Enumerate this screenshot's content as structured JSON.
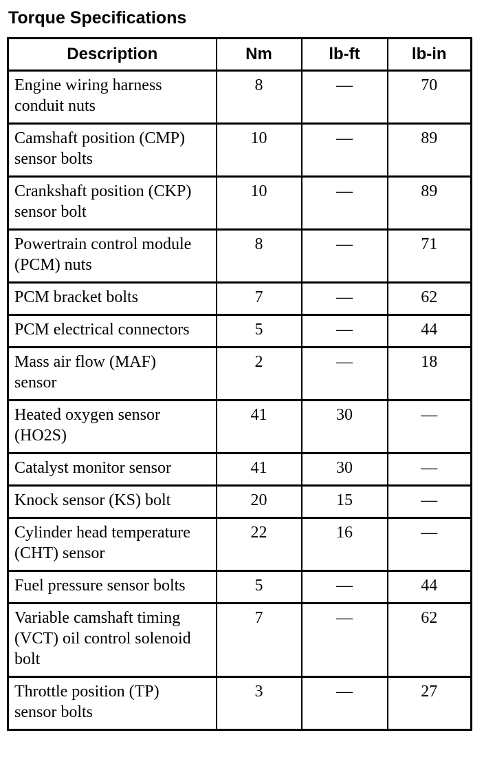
{
  "page": {
    "title": "Torque Specifications"
  },
  "table": {
    "headers": [
      "Description",
      "Nm",
      "lb-ft",
      "lb-in"
    ],
    "rows": [
      [
        "Engine wiring harness conduit nuts",
        "8",
        "—",
        "70"
      ],
      [
        "Camshaft position (CMP) sensor bolts",
        "10",
        "—",
        "89"
      ],
      [
        "Crankshaft position (CKP) sensor bolt",
        "10",
        "—",
        "89"
      ],
      [
        "Powertrain control module (PCM) nuts",
        "8",
        "—",
        "71"
      ],
      [
        "PCM bracket bolts",
        "7",
        "—",
        "62"
      ],
      [
        "PCM electrical connectors",
        "5",
        "—",
        "44"
      ],
      [
        "Mass air flow (MAF) sensor",
        "2",
        "—",
        "18"
      ],
      [
        "Heated oxygen sensor (HO2S)",
        "41",
        "30",
        "—"
      ],
      [
        "Catalyst monitor sensor",
        "41",
        "30",
        "—"
      ],
      [
        "Knock sensor (KS) bolt",
        "20",
        "15",
        "—"
      ],
      [
        "Cylinder head temperature (CHT) sensor",
        "22",
        "16",
        "—"
      ],
      [
        "Fuel pressure sensor bolts",
        "5",
        "—",
        "44"
      ],
      [
        "Variable camshaft timing (VCT) oil control solenoid bolt",
        "7",
        "—",
        "62"
      ],
      [
        "Throttle position (TP) sensor bolts",
        "3",
        "—",
        "27"
      ]
    ],
    "colors": {
      "text": "#000000",
      "background": "#ffffff",
      "border": "#000000"
    }
  }
}
